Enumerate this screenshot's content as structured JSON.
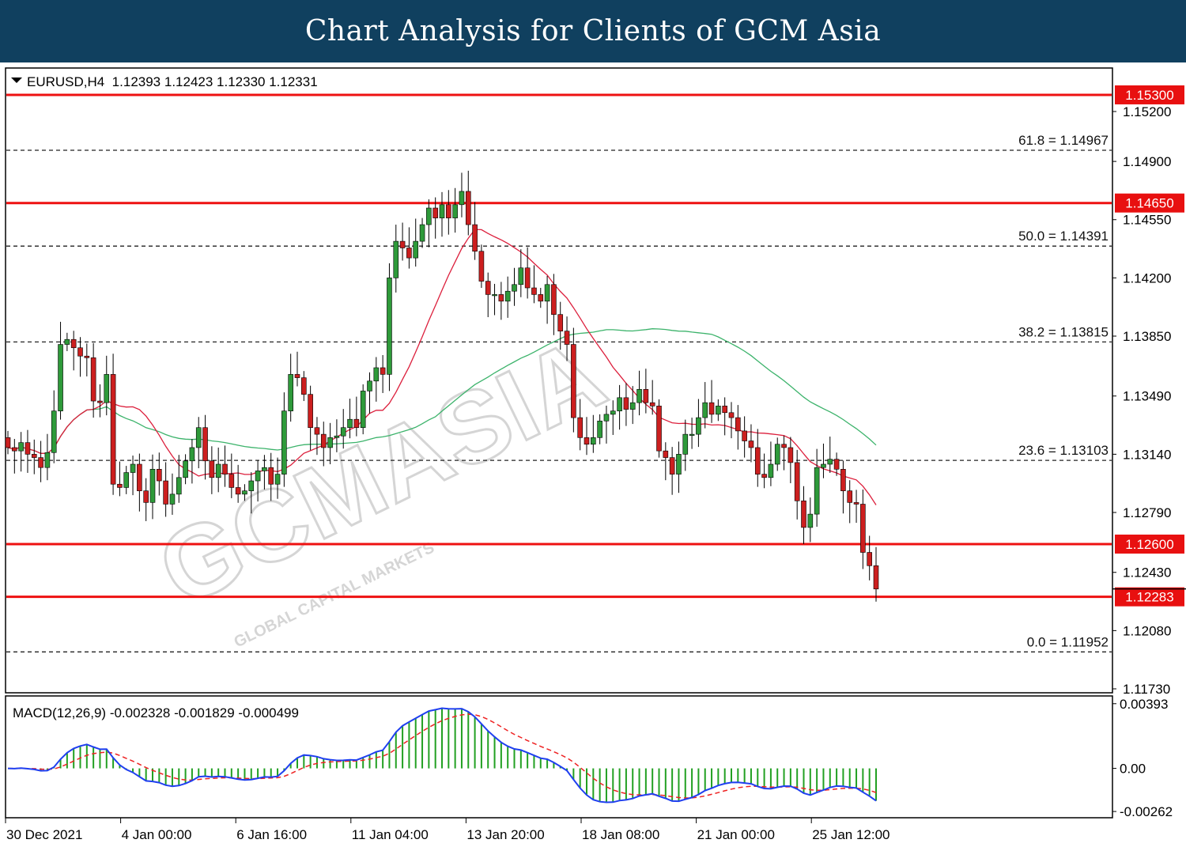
{
  "header": {
    "title": "Chart Analysis for Clients of GCM Asia"
  },
  "price_chart": {
    "info_line": "EURUSD,H4  1.12393 1.12423 1.12330 1.12331",
    "price_axis_ticks": [
      "1.15200",
      "1.14900",
      "1.14550",
      "1.14200",
      "1.13850",
      "1.13490",
      "1.13140",
      "1.12790",
      "1.12430",
      "1.12080",
      "1.11730"
    ],
    "level_badges": [
      {
        "label": "1.15300",
        "value": 1.153
      },
      {
        "label": "1.14650",
        "value": 1.1465
      },
      {
        "label": "1.12600",
        "value": 1.126
      },
      {
        "label": "1.12283",
        "value": 1.12283
      }
    ],
    "fib_levels": [
      {
        "label": "61.8 = 1.14967",
        "value": 1.14967
      },
      {
        "label": "50.0 = 1.14391",
        "value": 1.14391
      },
      {
        "label": "38.2 = 1.13815",
        "value": 1.13815
      },
      {
        "label": "23.6 = 1.13103",
        "value": 1.13103
      },
      {
        "label": "0.0 = 1.11952",
        "value": 1.11952
      }
    ]
  },
  "macd_panel": {
    "info_line": "MACD(12,26,9) -0.002328 -0.001829 -0.000499",
    "ticks": [
      "0.00393",
      "0.00",
      "-0.00262"
    ]
  },
  "time_axis": {
    "labels": [
      "30 Dec 2021",
      "4 Jan 00:00",
      "6 Jan 16:00",
      "11 Jan 04:00",
      "13 Jan 20:00",
      "18 Jan 08:00",
      "21 Jan 00:00",
      "25 Jan 12:00"
    ]
  },
  "watermark": {
    "brand": "GCMASIA",
    "sub": "GLOBAL CAPITAL MARKETS"
  },
  "colors": {
    "header_bg": "#10405f",
    "bull_candle": "#2e9a3a",
    "bear_candle": "#cc1f1f",
    "level_line": "#ee1111",
    "ma_fast": "#dc1f3c",
    "ma_slow": "#3cb36b",
    "macd_line": "#1f3ff0",
    "signal_line": "#ee2222",
    "histogram": "#22a022"
  },
  "chart_data": {
    "type": "candlestick",
    "symbol": "EURUSD",
    "timeframe": "H4",
    "last_ohlc": {
      "open": 1.12393,
      "high": 1.12423,
      "low": 1.1233,
      "close": 1.12331
    },
    "ylim": [
      1.1158,
      1.1542
    ],
    "x_labels": [
      "30 Dec 2021",
      "4 Jan 00:00",
      "6 Jan 16:00",
      "11 Jan 04:00",
      "13 Jan 20:00",
      "18 Jan 08:00",
      "21 Jan 00:00",
      "25 Jan 12:00"
    ],
    "closes": [
      1.1318,
      1.1316,
      1.1321,
      1.1314,
      1.1312,
      1.1306,
      1.1315,
      1.134,
      1.138,
      1.1383,
      1.1378,
      1.1373,
      1.1372,
      1.1346,
      1.1345,
      1.1362,
      1.1296,
      1.1294,
      1.1303,
      1.1308,
      1.1292,
      1.1285,
      1.1305,
      1.1298,
      1.1284,
      1.129,
      1.13,
      1.131,
      1.1318,
      1.133,
      1.131,
      1.13,
      1.1308,
      1.1302,
      1.1294,
      1.129,
      1.1292,
      1.1298,
      1.1304,
      1.1306,
      1.1296,
      1.1302,
      1.134,
      1.1362,
      1.136,
      1.135,
      1.133,
      1.1326,
      1.1318,
      1.1324,
      1.1325,
      1.133,
      1.1335,
      1.133,
      1.1352,
      1.1358,
      1.1366,
      1.1362,
      1.142,
      1.1442,
      1.1438,
      1.1432,
      1.1442,
      1.1452,
      1.1462,
      1.1456,
      1.1464,
      1.1456,
      1.1464,
      1.1472,
      1.1452,
      1.1436,
      1.1418,
      1.141,
      1.141,
      1.1406,
      1.1412,
      1.1416,
      1.1426,
      1.1414,
      1.141,
      1.1406,
      1.1416,
      1.1398,
      1.1388,
      1.138,
      1.1336,
      1.1324,
      1.132,
      1.1324,
      1.1334,
      1.1338,
      1.134,
      1.1348,
      1.1341,
      1.1345,
      1.1353,
      1.1345,
      1.1343,
      1.1316,
      1.1312,
      1.1302,
      1.1314,
      1.1326,
      1.1326,
      1.1336,
      1.1345,
      1.1338,
      1.1343,
      1.1339,
      1.1336,
      1.1328,
      1.1322,
      1.1318,
      1.1302,
      1.13,
      1.1308,
      1.132,
      1.1318,
      1.1309,
      1.1286,
      1.127,
      1.1278,
      1.1306,
      1.1308,
      1.1311,
      1.1305,
      1.1292,
      1.1285,
      1.1284,
      1.1255,
      1.1247,
      1.1233
    ],
    "levels": [
      1.153,
      1.1465,
      1.126,
      1.12283
    ],
    "fibonacci": [
      {
        "ratio": 61.8,
        "price": 1.14967
      },
      {
        "ratio": 50.0,
        "price": 1.14391
      },
      {
        "ratio": 38.2,
        "price": 1.13815
      },
      {
        "ratio": 23.6,
        "price": 1.13103
      },
      {
        "ratio": 0.0,
        "price": 1.11952
      }
    ],
    "macd": {
      "params": [
        12,
        26,
        9
      ],
      "main": -0.002328,
      "signal": -0.001829,
      "histogram": -0.000499,
      "ylim": [
        -0.003,
        0.0044
      ]
    }
  }
}
